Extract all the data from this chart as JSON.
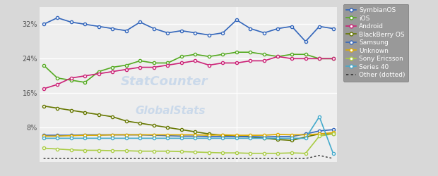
{
  "n_points": 22,
  "symbian": [
    32,
    33.5,
    32.5,
    32,
    31.5,
    31,
    30.5,
    32.5,
    31,
    30,
    30.5,
    30,
    29.5,
    30,
    33,
    31,
    30,
    31,
    31.5,
    28,
    31.5,
    31
  ],
  "ios": [
    22.5,
    19.5,
    19,
    18.5,
    21,
    22,
    22.5,
    23.5,
    23,
    23,
    24.5,
    25,
    24.5,
    25,
    25.5,
    25.5,
    25,
    24.5,
    25,
    25,
    24,
    24
  ],
  "android": [
    17,
    18,
    19.5,
    20,
    20.5,
    21,
    21.5,
    22,
    22,
    22.5,
    23,
    23.5,
    22.5,
    23,
    23,
    23.5,
    23.5,
    24.5,
    24,
    24,
    24,
    24
  ],
  "blackberry": [
    13,
    12.5,
    12,
    11.5,
    11,
    10.5,
    9.5,
    9,
    8.5,
    8,
    7.5,
    7,
    6.5,
    6.2,
    6,
    5.8,
    5.5,
    5.2,
    5,
    5.8,
    6.5,
    6.5
  ],
  "samsung": [
    6.2,
    6.2,
    6.2,
    6.3,
    6.3,
    6.3,
    6.3,
    6.3,
    6.2,
    6.1,
    6.0,
    6.0,
    5.9,
    5.9,
    5.9,
    5.9,
    5.8,
    5.9,
    5.9,
    6.5,
    7.2,
    7.5
  ],
  "unknown": [
    6.0,
    6.0,
    6.1,
    6.2,
    6.2,
    6.3,
    6.3,
    6.3,
    6.3,
    6.3,
    6.3,
    6.3,
    6.2,
    6.3,
    6.2,
    6.2,
    6.2,
    6.4,
    6.3,
    6.3,
    6.5,
    6.8
  ],
  "sony_ericsson": [
    3.2,
    3.0,
    2.8,
    2.7,
    2.7,
    2.6,
    2.6,
    2.5,
    2.5,
    2.5,
    2.4,
    2.3,
    2.2,
    2.1,
    2.1,
    2.0,
    2.0,
    2.0,
    2.1,
    2.0,
    6.0,
    6.5
  ],
  "series40": [
    5.5,
    5.5,
    5.5,
    5.5,
    5.5,
    5.5,
    5.5,
    5.5,
    5.5,
    5.5,
    5.5,
    5.5,
    5.5,
    5.5,
    5.5,
    5.5,
    5.5,
    5.5,
    5.5,
    5.5,
    10.5,
    2
  ],
  "other": [
    0.8,
    0.8,
    0.8,
    0.8,
    0.8,
    0.8,
    0.8,
    0.8,
    0.8,
    0.8,
    0.8,
    0.8,
    0.8,
    0.8,
    0.8,
    0.8,
    0.8,
    0.8,
    0.8,
    0.8,
    1.5,
    0.8
  ],
  "colors": {
    "symbian": "#3366bb",
    "ios": "#55aa22",
    "android": "#cc2277",
    "blackberry": "#667700",
    "samsung": "#3366bb",
    "unknown": "#ddaa00",
    "sony_ericsson": "#aacc44",
    "series40": "#44aacc",
    "other": "#333333"
  },
  "legend_labels": [
    "SymbianOS",
    "iOS",
    "Android",
    "BlackBerry OS",
    "Samsung",
    "Unknown",
    "Sony Ericsson",
    "Series 40",
    "Other (dotted)"
  ],
  "yticks": [
    8,
    16,
    24,
    32
  ],
  "ylim": [
    0,
    36
  ],
  "bg_color": "#d8d8d8",
  "plot_bg": "#eeeeee",
  "legend_bg": "#999999",
  "watermark_line1": "StatCounter",
  "watermark_line2": "GlobalStats"
}
